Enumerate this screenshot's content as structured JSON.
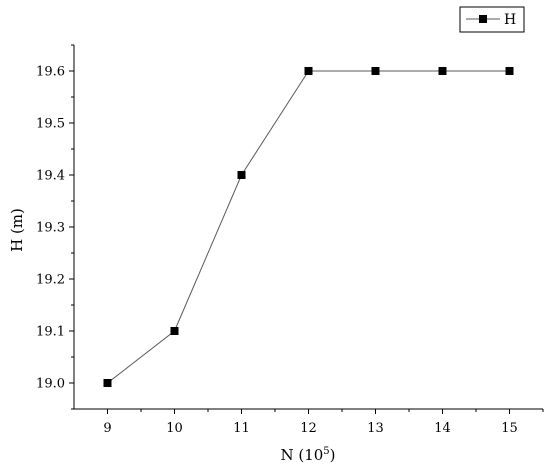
{
  "chart_data": {
    "type": "line",
    "title": "",
    "xlabel": "N (10",
    "xlabel_sup": "5",
    "xlabel_close": ")",
    "ylabel": "H (m)",
    "x": [
      9,
      10,
      11,
      12,
      13,
      14,
      15
    ],
    "series": [
      {
        "name": "H",
        "values": [
          19.0,
          19.1,
          19.4,
          19.6,
          19.6,
          19.6,
          19.6
        ]
      }
    ],
    "xlim": [
      8.5,
      15.5
    ],
    "ylim": [
      18.95,
      19.65
    ],
    "xticks": [
      9,
      10,
      11,
      12,
      13,
      14,
      15
    ],
    "xtick_labels": [
      "9",
      "10",
      "11",
      "12",
      "13",
      "14",
      "15"
    ],
    "yticks": [
      19.0,
      19.1,
      19.2,
      19.3,
      19.4,
      19.5,
      19.6
    ],
    "ytick_labels": [
      "19.0",
      "19.1",
      "19.2",
      "19.3",
      "19.4",
      "19.5",
      "19.6"
    ],
    "grid": false,
    "legend_position": "top-right",
    "marker": "square",
    "line_color": "#5a5a5a",
    "marker_color": "#000000"
  }
}
